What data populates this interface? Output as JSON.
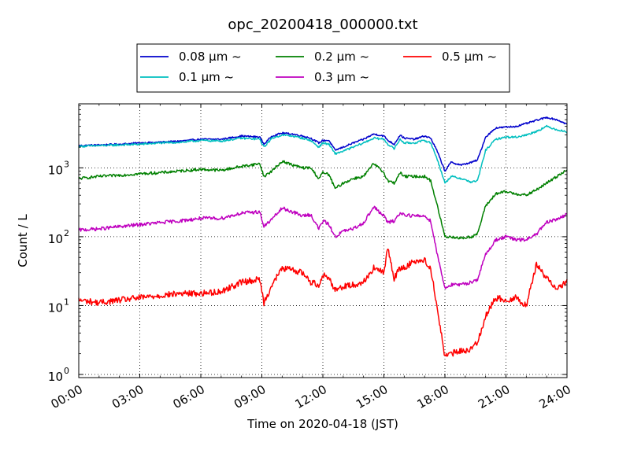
{
  "chart_data": {
    "type": "line",
    "title": "opc_20200418_000000.txt",
    "xlabel": "Time on 2020-04-18 (JST)",
    "ylabel": "Count / L",
    "yscale": "log",
    "xlim": [
      0,
      24
    ],
    "ylim": [
      0.9,
      8500
    ],
    "grid": true,
    "legend_position": "top-center",
    "x_ticks": [
      {
        "value": 0,
        "label": "00:00"
      },
      {
        "value": 3,
        "label": "03:00"
      },
      {
        "value": 6,
        "label": "06:00"
      },
      {
        "value": 9,
        "label": "09:00"
      },
      {
        "value": 12,
        "label": "12:00"
      },
      {
        "value": 15,
        "label": "15:00"
      },
      {
        "value": 18,
        "label": "18:00"
      },
      {
        "value": 21,
        "label": "21:00"
      },
      {
        "value": 24,
        "label": "24:00"
      }
    ],
    "y_ticks": [
      {
        "value": 1,
        "base": "10",
        "exp": "0"
      },
      {
        "value": 10,
        "base": "10",
        "exp": "1"
      },
      {
        "value": 100,
        "base": "10",
        "exp": "2"
      },
      {
        "value": 1000,
        "base": "10",
        "exp": "3"
      }
    ],
    "series": [
      {
        "name": "0.08 μm ~",
        "color": "#0000cc",
        "points": [
          [
            0,
            2100
          ],
          [
            1,
            2150
          ],
          [
            2,
            2200
          ],
          [
            3,
            2300
          ],
          [
            4,
            2350
          ],
          [
            5,
            2450
          ],
          [
            6,
            2600
          ],
          [
            7,
            2600
          ],
          [
            8,
            2900
          ],
          [
            8.9,
            2800
          ],
          [
            9.1,
            2200
          ],
          [
            9.5,
            2900
          ],
          [
            10,
            3200
          ],
          [
            10.5,
            3100
          ],
          [
            11,
            2900
          ],
          [
            11.4,
            2700
          ],
          [
            11.8,
            2300
          ],
          [
            12,
            2500
          ],
          [
            12.3,
            2500
          ],
          [
            12.6,
            1800
          ],
          [
            13,
            2000
          ],
          [
            13.5,
            2300
          ],
          [
            14,
            2600
          ],
          [
            14.5,
            3100
          ],
          [
            15,
            2900
          ],
          [
            15.2,
            2500
          ],
          [
            15.5,
            2200
          ],
          [
            15.8,
            3000
          ],
          [
            16,
            2700
          ],
          [
            16.5,
            2600
          ],
          [
            17,
            2900
          ],
          [
            17.3,
            2700
          ],
          [
            17.6,
            1800
          ],
          [
            18,
            900
          ],
          [
            18.3,
            1200
          ],
          [
            18.8,
            1100
          ],
          [
            19.3,
            1200
          ],
          [
            19.6,
            1300
          ],
          [
            20,
            2800
          ],
          [
            20.5,
            3800
          ],
          [
            21,
            3900
          ],
          [
            21.5,
            4000
          ],
          [
            22,
            4400
          ],
          [
            22.5,
            4900
          ],
          [
            23,
            5400
          ],
          [
            23.5,
            5000
          ],
          [
            24,
            4300
          ]
        ]
      },
      {
        "name": "0.1 μm ~",
        "color": "#00bfbf",
        "points": [
          [
            0,
            2050
          ],
          [
            1,
            2100
          ],
          [
            2,
            2150
          ],
          [
            3,
            2200
          ],
          [
            4,
            2300
          ],
          [
            5,
            2350
          ],
          [
            6,
            2500
          ],
          [
            7,
            2450
          ],
          [
            8,
            2700
          ],
          [
            8.9,
            2600
          ],
          [
            9.1,
            2000
          ],
          [
            9.5,
            2700
          ],
          [
            10,
            3000
          ],
          [
            10.5,
            2900
          ],
          [
            11,
            2700
          ],
          [
            11.4,
            2500
          ],
          [
            11.8,
            2000
          ],
          [
            12,
            2300
          ],
          [
            12.3,
            2200
          ],
          [
            12.6,
            1600
          ],
          [
            13,
            1750
          ],
          [
            13.5,
            2000
          ],
          [
            14,
            2300
          ],
          [
            14.5,
            2700
          ],
          [
            15,
            2600
          ],
          [
            15.2,
            2200
          ],
          [
            15.5,
            1900
          ],
          [
            15.8,
            2600
          ],
          [
            16,
            2300
          ],
          [
            16.5,
            2300
          ],
          [
            17,
            2500
          ],
          [
            17.3,
            2300
          ],
          [
            17.6,
            1400
          ],
          [
            18,
            600
          ],
          [
            18.3,
            750
          ],
          [
            18.8,
            700
          ],
          [
            19.3,
            620
          ],
          [
            19.6,
            650
          ],
          [
            20,
            1800
          ],
          [
            20.5,
            2600
          ],
          [
            21,
            2800
          ],
          [
            21.5,
            2800
          ],
          [
            22,
            3000
          ],
          [
            22.5,
            3400
          ],
          [
            23,
            4000
          ],
          [
            23.5,
            3600
          ],
          [
            24,
            3300
          ]
        ]
      },
      {
        "name": "0.2 μm ~",
        "color": "#008000",
        "points": [
          [
            0,
            700
          ],
          [
            1,
            750
          ],
          [
            2,
            780
          ],
          [
            3,
            820
          ],
          [
            4,
            850
          ],
          [
            5,
            900
          ],
          [
            6,
            950
          ],
          [
            7,
            920
          ],
          [
            8,
            1050
          ],
          [
            8.9,
            1150
          ],
          [
            9.1,
            750
          ],
          [
            9.5,
            900
          ],
          [
            10,
            1250
          ],
          [
            10.5,
            1100
          ],
          [
            11,
            1000
          ],
          [
            11.4,
            1000
          ],
          [
            11.8,
            700
          ],
          [
            12,
            850
          ],
          [
            12.3,
            800
          ],
          [
            12.6,
            500
          ],
          [
            13,
            600
          ],
          [
            13.5,
            700
          ],
          [
            14,
            750
          ],
          [
            14.5,
            1150
          ],
          [
            15,
            850
          ],
          [
            15.2,
            650
          ],
          [
            15.5,
            600
          ],
          [
            15.8,
            850
          ],
          [
            16,
            750
          ],
          [
            16.5,
            750
          ],
          [
            17,
            750
          ],
          [
            17.3,
            650
          ],
          [
            17.6,
            300
          ],
          [
            18,
            100
          ],
          [
            18.3,
            100
          ],
          [
            18.8,
            95
          ],
          [
            19.3,
            100
          ],
          [
            19.6,
            110
          ],
          [
            20,
            280
          ],
          [
            20.5,
            420
          ],
          [
            21,
            450
          ],
          [
            21.5,
            420
          ],
          [
            22,
            400
          ],
          [
            22.5,
            480
          ],
          [
            23,
            600
          ],
          [
            23.5,
            750
          ],
          [
            24,
            950
          ]
        ]
      },
      {
        "name": "0.3 μm ~",
        "color": "#bf00bf",
        "points": [
          [
            0,
            125
          ],
          [
            1,
            130
          ],
          [
            2,
            140
          ],
          [
            3,
            150
          ],
          [
            4,
            160
          ],
          [
            5,
            170
          ],
          [
            6,
            185
          ],
          [
            7,
            185
          ],
          [
            8,
            220
          ],
          [
            8.9,
            230
          ],
          [
            9.1,
            140
          ],
          [
            9.5,
            180
          ],
          [
            10,
            260
          ],
          [
            10.5,
            230
          ],
          [
            11,
            200
          ],
          [
            11.4,
            210
          ],
          [
            11.8,
            130
          ],
          [
            12,
            170
          ],
          [
            12.3,
            150
          ],
          [
            12.6,
            100
          ],
          [
            13,
            120
          ],
          [
            13.5,
            130
          ],
          [
            14,
            160
          ],
          [
            14.5,
            270
          ],
          [
            15,
            200
          ],
          [
            15.2,
            160
          ],
          [
            15.5,
            170
          ],
          [
            15.8,
            220
          ],
          [
            16,
            210
          ],
          [
            16.5,
            200
          ],
          [
            17,
            200
          ],
          [
            17.3,
            170
          ],
          [
            17.6,
            60
          ],
          [
            18,
            18
          ],
          [
            18.3,
            20
          ],
          [
            18.8,
            20
          ],
          [
            19.3,
            22
          ],
          [
            19.6,
            24
          ],
          [
            20,
            55
          ],
          [
            20.5,
            90
          ],
          [
            21,
            100
          ],
          [
            21.5,
            90
          ],
          [
            22,
            90
          ],
          [
            22.5,
            110
          ],
          [
            23,
            160
          ],
          [
            23.5,
            180
          ],
          [
            24,
            210
          ]
        ]
      },
      {
        "name": "0.5 μm ~",
        "color": "#ff0000",
        "points": [
          [
            0,
            12
          ],
          [
            1,
            11
          ],
          [
            2,
            12
          ],
          [
            3,
            13
          ],
          [
            4,
            14
          ],
          [
            5,
            15
          ],
          [
            6,
            15
          ],
          [
            7,
            16
          ],
          [
            8,
            22
          ],
          [
            8.9,
            24
          ],
          [
            9.1,
            11
          ],
          [
            9.5,
            20
          ],
          [
            10,
            35
          ],
          [
            10.5,
            33
          ],
          [
            11,
            30
          ],
          [
            11.4,
            22
          ],
          [
            11.8,
            20
          ],
          [
            12,
            28
          ],
          [
            12.3,
            25
          ],
          [
            12.6,
            17
          ],
          [
            13,
            19
          ],
          [
            13.5,
            20
          ],
          [
            14,
            22
          ],
          [
            14.5,
            35
          ],
          [
            15,
            30
          ],
          [
            15.2,
            70
          ],
          [
            15.5,
            25
          ],
          [
            15.8,
            35
          ],
          [
            16,
            35
          ],
          [
            16.5,
            45
          ],
          [
            17,
            45
          ],
          [
            17.3,
            35
          ],
          [
            17.6,
            10
          ],
          [
            18,
            1.8
          ],
          [
            18.3,
            2.0
          ],
          [
            18.8,
            2.2
          ],
          [
            19.3,
            2.3
          ],
          [
            19.6,
            3.0
          ],
          [
            20,
            7
          ],
          [
            20.5,
            13
          ],
          [
            21,
            12
          ],
          [
            21.5,
            13
          ],
          [
            22,
            10
          ],
          [
            22.5,
            40
          ],
          [
            23,
            25
          ],
          [
            23.5,
            18
          ],
          [
            24,
            22
          ]
        ]
      }
    ]
  }
}
